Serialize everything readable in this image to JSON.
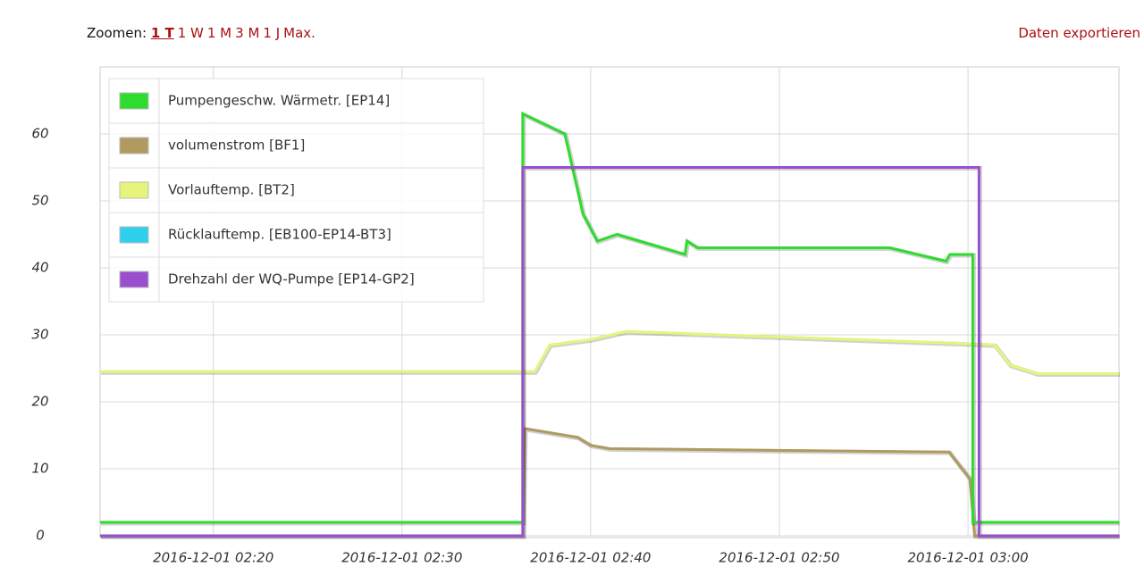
{
  "header": {
    "zoom_label": "Zoomen:",
    "zoom_links": [
      "1 T",
      "1 W",
      "1 M",
      "3 M",
      "1 J",
      "Max."
    ],
    "export": "Daten exportieren"
  },
  "chart_data": {
    "type": "line",
    "xlim": [
      "2016-12-01 02:14:00",
      "2016-12-01 03:08:00"
    ],
    "xticks": [
      "2016-12-01 02:20",
      "2016-12-01 02:30",
      "2016-12-01 02:40",
      "2016-12-01 02:50",
      "2016-12-01 03:00"
    ],
    "ylim": [
      0,
      70
    ],
    "yticks": [
      0,
      10,
      20,
      30,
      40,
      50,
      60
    ],
    "grid": true,
    "legend": "top-left",
    "series": [
      {
        "name": "Pumpengeschw. Wärmetr. [EP14]",
        "color": "#2ddc2d",
        "x": [
          "2016-12-01 02:14:00",
          "2016-12-01 02:36:24",
          "2016-12-01 02:36:24",
          "2016-12-01 02:38:38",
          "2016-12-01 02:39:36",
          "2016-12-01 02:40:21",
          "2016-12-01 02:41:24",
          "2016-12-01 02:45:00",
          "2016-12-01 02:45:06",
          "2016-12-01 02:45:40",
          "2016-12-01 02:55:50",
          "2016-12-01 02:58:50",
          "2016-12-01 02:59:02",
          "2016-12-01 03:00:15",
          "2016-12-01 03:00:15",
          "2016-12-01 03:08:00"
        ],
        "values": [
          2,
          2,
          63,
          60,
          48,
          44,
          45,
          42,
          44,
          43,
          43,
          41,
          42,
          42,
          2,
          2
        ]
      },
      {
        "name": "volumenstrom [BF1]",
        "color": "#b09a60",
        "x": [
          "2016-12-01 02:14:00",
          "2016-12-01 02:36:24",
          "2016-12-01 02:36:30",
          "2016-12-01 02:39:18",
          "2016-12-01 02:40:00",
          "2016-12-01 02:41:00",
          "2016-12-01 02:59:00",
          "2016-12-01 03:00:06",
          "2016-12-01 03:00:21",
          "2016-12-01 03:08:00"
        ],
        "values": [
          0,
          0,
          16,
          14.7,
          13.5,
          13,
          12.5,
          8.5,
          0,
          0
        ]
      },
      {
        "name": "Vorlauftemp. [BT2]",
        "color": "#e6f57a",
        "x": [
          "2016-12-01 02:14:00",
          "2016-12-01 02:37:02",
          "2016-12-01 02:37:50",
          "2016-12-01 02:40:00",
          "2016-12-01 02:41:52",
          "2016-12-01 02:59:52",
          "2016-12-01 03:01:24",
          "2016-12-01 03:02:14",
          "2016-12-01 03:03:40",
          "2016-12-01 03:08:00"
        ],
        "values": [
          24.5,
          24.5,
          28.5,
          29.3,
          30.5,
          28.7,
          28.5,
          25.5,
          24.2,
          24.2
        ]
      },
      {
        "name": "Rücklauftemp. [EB100-EP14-BT3]",
        "color": "#2ed0ee",
        "x": [],
        "values": []
      },
      {
        "name": "Drehzahl der WQ-Pumpe [EP14-GP2]",
        "color": "#9b4fcf",
        "x": [
          "2016-12-01 02:14:00",
          "2016-12-01 02:36:24",
          "2016-12-01 02:36:24",
          "2016-12-01 03:00:35",
          "2016-12-01 03:00:35",
          "2016-12-01 03:08:00"
        ],
        "values": [
          0,
          0,
          55,
          55,
          0,
          0
        ]
      }
    ]
  }
}
